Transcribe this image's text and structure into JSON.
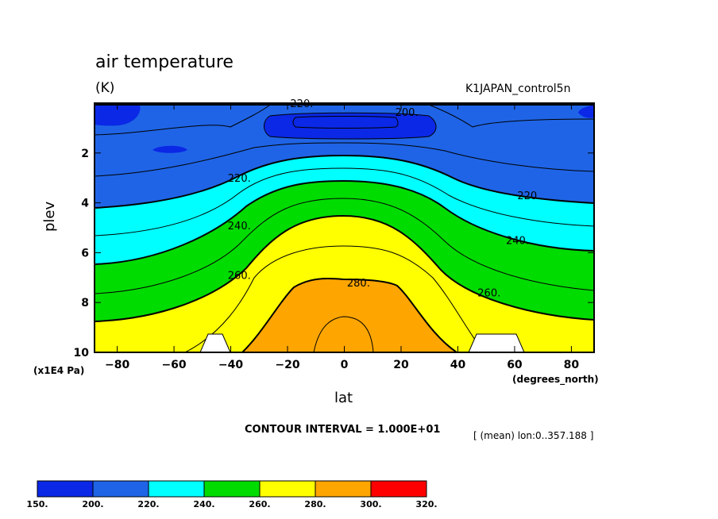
{
  "title": "air temperature",
  "units": "(K)",
  "run_label": "K1JAPAN_control5n",
  "contour_interval": "CONTOUR INTERVAL = 1.000E+01",
  "mean_note": "[ (mean) lon:0..357.188 ]",
  "chart_data": {
    "type": "heatmap",
    "title": "air temperature",
    "xlabel": "lat",
    "ylabel": "plev",
    "x_unit_label": "(degrees_north)",
    "y_unit_label": "(x1E4 Pa)",
    "xlim": [
      -88,
      88
    ],
    "ylim": [
      10,
      0
    ],
    "x_ticks": [
      -80,
      -60,
      -40,
      -20,
      0,
      20,
      40,
      60,
      80
    ],
    "x_tick_labels": [
      "−80",
      "−60",
      "−40",
      "−20",
      "0",
      "20",
      "40",
      "60",
      "80"
    ],
    "y_ticks": [
      2,
      4,
      6,
      8,
      10
    ],
    "y_tick_labels": [
      "2",
      "4",
      "6",
      "8",
      "10"
    ],
    "contour_labels": [
      {
        "text": "220.",
        "lat": -37,
        "plev": 3.0
      },
      {
        "text": "220.",
        "lat": 65,
        "plev": 3.7
      },
      {
        "text": "240.",
        "lat": -37,
        "plev": 4.9
      },
      {
        "text": "240.",
        "lat": 61,
        "plev": 5.5
      },
      {
        "text": "260.",
        "lat": -37,
        "plev": 6.9
      },
      {
        "text": "260.",
        "lat": 51,
        "plev": 7.6
      },
      {
        "text": "280.",
        "lat": 5,
        "plev": 7.2
      },
      {
        "text": "220.",
        "lat": -15,
        "plev": 0.0
      },
      {
        "text": "200.",
        "lat": 22,
        "plev": 0.35
      }
    ],
    "bands": [
      {
        "from": 150,
        "to": 200,
        "color": "#0a28e6",
        "top": [
          [
            -88,
            0.25
          ],
          [
            -80,
            0.2
          ],
          [
            -72,
            0.45
          ],
          [
            -88,
            0.75
          ]
        ]
      },
      {
        "from": 200,
        "to": 220,
        "color": "#1f64e6"
      },
      {
        "from": 220,
        "to": 240,
        "color": "#00ffff"
      },
      {
        "from": 240,
        "to": 260,
        "color": "#00dc00"
      },
      {
        "from": 260,
        "to": 280,
        "color": "#ffff00"
      },
      {
        "from": 280,
        "to": 300,
        "color": "#ffa500"
      },
      {
        "from": 300,
        "to": 320,
        "color": "#ff0000"
      }
    ],
    "colorbar": {
      "labels": [
        "150.",
        "200.",
        "220.",
        "240.",
        "260.",
        "280.",
        "300.",
        "320."
      ],
      "colors": [
        "#0a28e6",
        "#1f64e6",
        "#00ffff",
        "#00dc00",
        "#ffff00",
        "#ffa500",
        "#ff0000"
      ]
    }
  }
}
